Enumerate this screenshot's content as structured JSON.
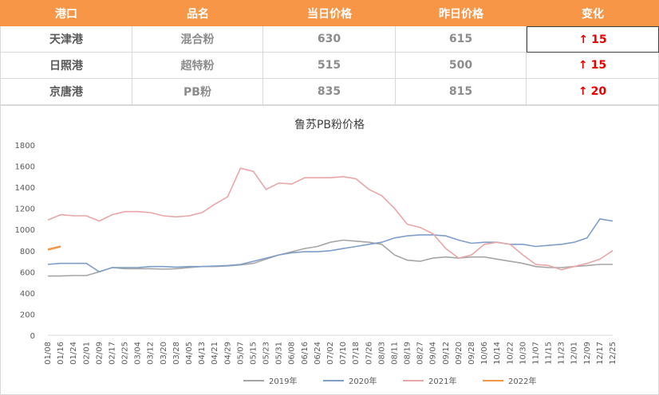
{
  "table": {
    "headers": [
      "港口",
      "品名",
      "当日价格",
      "昨日价格",
      "变化"
    ],
    "rows": [
      {
        "port": "天津港",
        "product": "混合粉",
        "today": "630",
        "yesterday": "615",
        "change": "15"
      },
      {
        "port": "日照港",
        "product": "超特粉",
        "today": "515",
        "yesterday": "500",
        "change": "15"
      },
      {
        "port": "京唐港",
        "product": "PB粉",
        "today": "835",
        "yesterday": "815",
        "change": "20"
      }
    ],
    "up_arrow_icon": "arrow-up-icon",
    "colors": {
      "header": "#f79646",
      "up": "#e60000"
    }
  },
  "chart_data": {
    "type": "line",
    "title": "鲁苏PB粉价格",
    "xlabel": "",
    "ylabel": "",
    "ylim": [
      0,
      1800
    ],
    "yticks": [
      0,
      200,
      400,
      600,
      800,
      1000,
      1200,
      1400,
      1600,
      1800
    ],
    "categories": [
      "01/08",
      "01/16",
      "01/24",
      "02/01",
      "02/09",
      "02/17",
      "02/25",
      "03/04",
      "03/12",
      "03/20",
      "03/28",
      "04/05",
      "04/13",
      "04/21",
      "04/29",
      "05/07",
      "05/15",
      "05/23",
      "05/31",
      "06/08",
      "06/16",
      "06/24",
      "07/02",
      "07/10",
      "07/18",
      "07/26",
      "08/03",
      "08/11",
      "08/19",
      "08/27",
      "09/04",
      "09/12",
      "09/20",
      "09/28",
      "10/06",
      "10/14",
      "10/22",
      "10/30",
      "11/07",
      "11/15",
      "11/23",
      "12/01",
      "12/09",
      "12/17",
      "12/25"
    ],
    "grid": false,
    "legend": "bottom",
    "series": [
      {
        "name": "2019年",
        "color": "#a5a5a5",
        "values": [
          560,
          560,
          565,
          565,
          600,
          640,
          630,
          630,
          630,
          625,
          630,
          640,
          650,
          650,
          655,
          665,
          680,
          720,
          760,
          790,
          820,
          840,
          880,
          900,
          890,
          880,
          860,
          760,
          710,
          700,
          730,
          740,
          730,
          740,
          740,
          720,
          700,
          680,
          650,
          640,
          640,
          650,
          660,
          670,
          670
        ]
      },
      {
        "name": "2020年",
        "color": "#7f9ec9",
        "values": [
          670,
          680,
          680,
          680,
          600,
          640,
          640,
          640,
          650,
          650,
          645,
          650,
          650,
          655,
          660,
          670,
          700,
          730,
          760,
          780,
          790,
          790,
          800,
          820,
          840,
          860,
          880,
          920,
          940,
          950,
          950,
          940,
          900,
          870,
          880,
          880,
          860,
          860,
          840,
          850,
          860,
          880,
          920,
          1100,
          1080
        ]
      },
      {
        "name": "2021年",
        "color": "#e8a6a6",
        "values": [
          1090,
          1140,
          1130,
          1130,
          1080,
          1140,
          1170,
          1170,
          1160,
          1130,
          1120,
          1130,
          1160,
          1240,
          1310,
          1580,
          1550,
          1380,
          1440,
          1430,
          1490,
          1490,
          1490,
          1500,
          1480,
          1380,
          1320,
          1200,
          1050,
          1020,
          960,
          820,
          730,
          760,
          860,
          880,
          860,
          760,
          670,
          660,
          620,
          650,
          680,
          720,
          800
        ]
      },
      {
        "name": "2022年",
        "color": "#f79646",
        "values": [
          810,
          840,
          null,
          null,
          null,
          null,
          null,
          null,
          null,
          null,
          null,
          null,
          null,
          null,
          null,
          null,
          null,
          null,
          null,
          null,
          null,
          null,
          null,
          null,
          null,
          null,
          null,
          null,
          null,
          null,
          null,
          null,
          null,
          null,
          null,
          null,
          null,
          null,
          null,
          null,
          null,
          null,
          null,
          null,
          null
        ]
      }
    ]
  }
}
